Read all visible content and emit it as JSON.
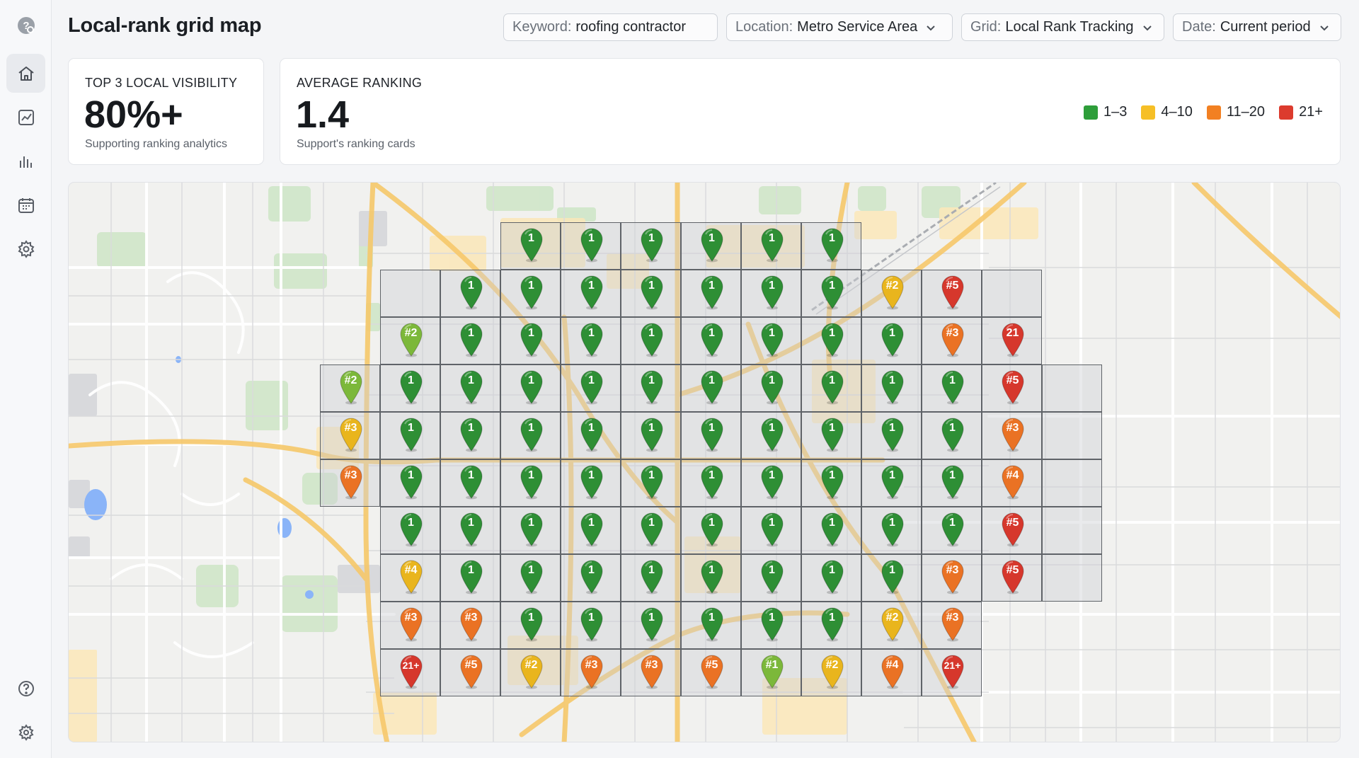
{
  "header": {
    "title": "Local-rank grid map",
    "filters": [
      {
        "key": "Keyword:",
        "value": "roofing contractor",
        "dropdown": false
      },
      {
        "key": "Location:",
        "value": "Metro Service Area",
        "dropdown": true
      },
      {
        "key": "Grid:",
        "value": "Local Rank Tracking",
        "dropdown": true
      },
      {
        "key": "Date:",
        "value": "Current period",
        "dropdown": true
      }
    ]
  },
  "sidebar": {
    "items": [
      {
        "name": "logo-icon"
      },
      {
        "name": "home-icon",
        "active": true
      },
      {
        "name": "line-chart-icon"
      },
      {
        "name": "bar-chart-icon"
      },
      {
        "name": "calendar-icon"
      },
      {
        "name": "settings-icon"
      },
      {
        "name": "help-icon"
      },
      {
        "name": "plugin-gear-icon"
      }
    ]
  },
  "cards": {
    "visibility": {
      "label": "TOP 3 LOCAL VISIBILITY",
      "value": "80%+",
      "sub": "Supporting ranking analytics"
    },
    "average": {
      "label": "AVERAGE RANKING",
      "value": "1.4",
      "sub": "Support's ranking cards"
    }
  },
  "legend": [
    {
      "label": "1–3",
      "color": "#2e9e3a"
    },
    {
      "label": "4–10",
      "color": "#f6bf26"
    },
    {
      "label": "11–20",
      "color": "#f28022"
    },
    {
      "label": "21+",
      "color": "#dc3b2e"
    }
  ],
  "grid": {
    "colors": {
      "g": "#2e8f35",
      "lg": "#7cb83a",
      "y": "#e9b51d",
      "o": "#ea7224",
      "r": "#d6372c"
    },
    "rows": [
      {
        "row": 0,
        "start": 7,
        "cells": [
          [
            "1",
            "g"
          ],
          [
            "1",
            "g"
          ],
          [
            "1",
            "g"
          ],
          [
            "1",
            "g"
          ],
          [
            "1",
            "g"
          ],
          [
            "1",
            "g"
          ]
        ]
      },
      {
        "row": 1,
        "start": 5,
        "cells": [
          [
            null,
            null
          ],
          [
            "1",
            "g"
          ],
          [
            "1",
            "g"
          ],
          [
            "1",
            "g"
          ],
          [
            "1",
            "g"
          ],
          [
            "1",
            "g"
          ],
          [
            "1",
            "g"
          ],
          [
            "1",
            "g"
          ],
          [
            "#2",
            "y"
          ],
          [
            "#5",
            "r"
          ],
          [
            null,
            null
          ]
        ]
      },
      {
        "row": 2,
        "start": 5,
        "cells": [
          [
            "#2",
            "lg"
          ],
          [
            "1",
            "g"
          ],
          [
            "1",
            "g"
          ],
          [
            "1",
            "g"
          ],
          [
            "1",
            "g"
          ],
          [
            "1",
            "g"
          ],
          [
            "1",
            "g"
          ],
          [
            "1",
            "g"
          ],
          [
            "1",
            "g"
          ],
          [
            "#3",
            "o"
          ],
          [
            "21",
            "r"
          ]
        ]
      },
      {
        "row": 3,
        "start": 4,
        "cells": [
          [
            "#2",
            "lg"
          ],
          [
            "1",
            "g"
          ],
          [
            "1",
            "g"
          ],
          [
            "1",
            "g"
          ],
          [
            "1",
            "g"
          ],
          [
            "1",
            "g"
          ],
          [
            "1",
            "g"
          ],
          [
            "1",
            "g"
          ],
          [
            "1",
            "g"
          ],
          [
            "1",
            "g"
          ],
          [
            "1",
            "g"
          ],
          [
            "#5",
            "r"
          ],
          [
            null,
            null
          ]
        ]
      },
      {
        "row": 4,
        "start": 4,
        "cells": [
          [
            "#3",
            "y"
          ],
          [
            "1",
            "g"
          ],
          [
            "1",
            "g"
          ],
          [
            "1",
            "g"
          ],
          [
            "1",
            "g"
          ],
          [
            "1",
            "g"
          ],
          [
            "1",
            "g"
          ],
          [
            "1",
            "g"
          ],
          [
            "1",
            "g"
          ],
          [
            "1",
            "g"
          ],
          [
            "1",
            "g"
          ],
          [
            "#3",
            "o"
          ],
          [
            null,
            null
          ]
        ]
      },
      {
        "row": 5,
        "start": 4,
        "cells": [
          [
            "#3",
            "o"
          ],
          [
            "1",
            "g"
          ],
          [
            "1",
            "g"
          ],
          [
            "1",
            "g"
          ],
          [
            "1",
            "g"
          ],
          [
            "1",
            "g"
          ],
          [
            "1",
            "g"
          ],
          [
            "1",
            "g"
          ],
          [
            "1",
            "g"
          ],
          [
            "1",
            "g"
          ],
          [
            "1",
            "g"
          ],
          [
            "#4",
            "o"
          ],
          [
            null,
            null
          ]
        ]
      },
      {
        "row": 6,
        "start": 5,
        "cells": [
          [
            "1",
            "g"
          ],
          [
            "1",
            "g"
          ],
          [
            "1",
            "g"
          ],
          [
            "1",
            "g"
          ],
          [
            "1",
            "g"
          ],
          [
            "1",
            "g"
          ],
          [
            "1",
            "g"
          ],
          [
            "1",
            "g"
          ],
          [
            "1",
            "g"
          ],
          [
            "1",
            "g"
          ],
          [
            "#5",
            "r"
          ],
          [
            null,
            null
          ]
        ]
      },
      {
        "row": 7,
        "start": 5,
        "cells": [
          [
            "#4",
            "y"
          ],
          [
            "1",
            "g"
          ],
          [
            "1",
            "g"
          ],
          [
            "1",
            "g"
          ],
          [
            "1",
            "g"
          ],
          [
            "1",
            "g"
          ],
          [
            "1",
            "g"
          ],
          [
            "1",
            "g"
          ],
          [
            "1",
            "g"
          ],
          [
            "#3",
            "o"
          ],
          [
            "#5",
            "r"
          ],
          [
            null,
            null
          ]
        ]
      },
      {
        "row": 8,
        "start": 5,
        "cells": [
          [
            "#3",
            "o"
          ],
          [
            "#3",
            "o"
          ],
          [
            "1",
            "g"
          ],
          [
            "1",
            "g"
          ],
          [
            "1",
            "g"
          ],
          [
            "1",
            "g"
          ],
          [
            "1",
            "g"
          ],
          [
            "1",
            "g"
          ],
          [
            "#2",
            "y"
          ],
          [
            "#3",
            "o"
          ]
        ]
      },
      {
        "row": 9,
        "start": 5,
        "cells": [
          [
            "21+",
            "r"
          ],
          [
            "#5",
            "o"
          ],
          [
            "#2",
            "y"
          ],
          [
            "#3",
            "o"
          ],
          [
            "#3",
            "o"
          ],
          [
            "#5",
            "o"
          ],
          [
            "#1",
            "lg"
          ],
          [
            "#2",
            "y"
          ],
          [
            "#4",
            "o"
          ],
          [
            "21+",
            "r"
          ]
        ]
      }
    ]
  }
}
